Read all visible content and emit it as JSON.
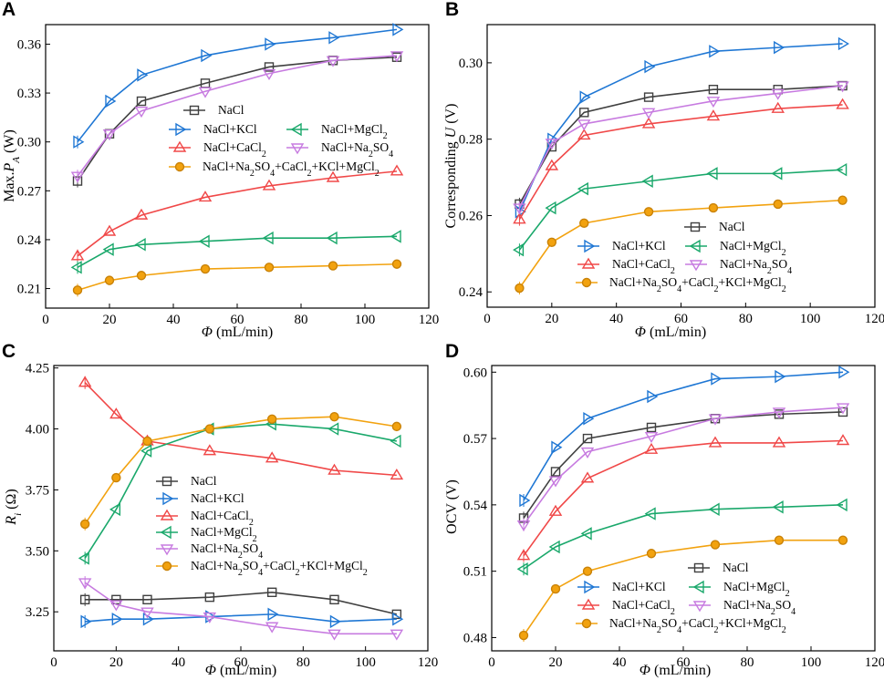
{
  "colors": {
    "NaCl": "#404040",
    "NaCl+KCl": "#1f77d4",
    "NaCl+CaCl2": "#f04848",
    "NaCl+MgCl2": "#1aa86b",
    "NaCl+Na2SO4": "#c77be0",
    "mix": "#f2a20f"
  },
  "chart_data": [
    {
      "type": "line",
      "panel": "A",
      "x": [
        10,
        20,
        30,
        50,
        70,
        90,
        110
      ],
      "xlim": [
        0,
        120
      ],
      "xticks": [
        0,
        20,
        40,
        60,
        80,
        100,
        120
      ],
      "ylim": [
        0.198,
        0.372
      ],
      "yticks": [
        0.21,
        0.24,
        0.27,
        0.3,
        0.33,
        0.36
      ],
      "ytick_labels": [
        "0.21",
        "0.24",
        "0.27",
        "0.30",
        "0.33",
        "0.36"
      ],
      "xlabel": "Φ (mL/min)",
      "ylabel_main": "Max.",
      "ylabel_sym": "P",
      "ylabel_sub": "A",
      "ylabel_unit": " (W)",
      "series": [
        {
          "key": "NaCl",
          "marker": "square",
          "values": [
            0.276,
            0.305,
            0.325,
            0.336,
            0.346,
            0.35,
            0.352
          ]
        },
        {
          "key": "NaCl+KCl",
          "marker": "tri-right",
          "values": [
            0.3,
            0.325,
            0.341,
            0.353,
            0.36,
            0.364,
            0.369
          ]
        },
        {
          "key": "NaCl+CaCl2",
          "marker": "tri-up",
          "values": [
            0.23,
            0.245,
            0.255,
            0.266,
            0.273,
            0.278,
            0.282
          ]
        },
        {
          "key": "NaCl+MgCl2",
          "marker": "tri-left",
          "values": [
            0.223,
            0.234,
            0.237,
            0.239,
            0.241,
            0.241,
            0.242
          ]
        },
        {
          "key": "NaCl+Na2SO4",
          "marker": "tri-down",
          "values": [
            0.279,
            0.305,
            0.319,
            0.331,
            0.342,
            0.35,
            0.353
          ]
        },
        {
          "key": "mix",
          "marker": "circle",
          "values": [
            0.209,
            0.215,
            0.218,
            0.222,
            0.223,
            0.224,
            0.225
          ]
        }
      ],
      "legend": {
        "placement": "middle-right"
      }
    },
    {
      "type": "line",
      "panel": "B",
      "x": [
        10,
        20,
        30,
        50,
        70,
        90,
        110
      ],
      "xlim": [
        0,
        120
      ],
      "xticks": [
        0,
        20,
        40,
        60,
        80,
        100,
        120
      ],
      "ylim": [
        0.236,
        0.31
      ],
      "yticks": [
        0.24,
        0.26,
        0.28,
        0.3
      ],
      "ytick_labels": [
        "0.24",
        "0.26",
        "0.28",
        "0.30"
      ],
      "xlabel": "Φ (mL/min)",
      "ylabel_main": "Corresponding ",
      "ylabel_sym": "U",
      "ylabel_sub": "",
      "ylabel_unit": " (V)",
      "series": [
        {
          "key": "NaCl",
          "marker": "square",
          "values": [
            0.263,
            0.278,
            0.287,
            0.291,
            0.293,
            0.293,
            0.294
          ]
        },
        {
          "key": "NaCl+KCl",
          "marker": "tri-right",
          "values": [
            0.261,
            0.28,
            0.291,
            0.299,
            0.303,
            0.304,
            0.305
          ]
        },
        {
          "key": "NaCl+CaCl2",
          "marker": "tri-up",
          "values": [
            0.259,
            0.273,
            0.281,
            0.284,
            0.286,
            0.288,
            0.289
          ]
        },
        {
          "key": "NaCl+MgCl2",
          "marker": "tri-left",
          "values": [
            0.251,
            0.262,
            0.267,
            0.269,
            0.271,
            0.271,
            0.272
          ]
        },
        {
          "key": "NaCl+Na2SO4",
          "marker": "tri-down",
          "values": [
            0.262,
            0.279,
            0.284,
            0.287,
            0.29,
            0.292,
            0.294
          ]
        },
        {
          "key": "mix",
          "marker": "circle",
          "values": [
            0.241,
            0.253,
            0.258,
            0.261,
            0.262,
            0.263,
            0.264
          ]
        }
      ],
      "legend": {
        "placement": "lower-right"
      }
    },
    {
      "type": "line",
      "panel": "C",
      "x": [
        10,
        20,
        30,
        50,
        70,
        90,
        110
      ],
      "xlim": [
        0,
        120
      ],
      "xticks": [
        0,
        20,
        40,
        60,
        80,
        100,
        120
      ],
      "ylim": [
        3.09,
        4.26
      ],
      "yticks": [
        3.25,
        3.5,
        3.75,
        4.0,
        4.25
      ],
      "ytick_labels": [
        "3.25",
        "3.50",
        "3.75",
        "4.00",
        "4.25"
      ],
      "xlabel": "Φ (mL/min)",
      "ylabel_main": "",
      "ylabel_sym": "R",
      "ylabel_sub": "i",
      "ylabel_unit": " (Ω)",
      "series": [
        {
          "key": "NaCl",
          "marker": "square",
          "values": [
            3.3,
            3.3,
            3.3,
            3.31,
            3.33,
            3.3,
            3.24
          ]
        },
        {
          "key": "NaCl+KCl",
          "marker": "tri-right",
          "values": [
            3.21,
            3.22,
            3.22,
            3.23,
            3.24,
            3.21,
            3.22
          ]
        },
        {
          "key": "NaCl+CaCl2",
          "marker": "tri-up",
          "values": [
            4.19,
            4.06,
            3.95,
            3.91,
            3.88,
            3.83,
            3.81
          ]
        },
        {
          "key": "NaCl+MgCl2",
          "marker": "tri-left",
          "values": [
            3.47,
            3.67,
            3.91,
            4.0,
            4.02,
            4.0,
            3.95
          ]
        },
        {
          "key": "NaCl+Na2SO4",
          "marker": "tri-down",
          "values": [
            3.37,
            3.28,
            3.25,
            3.23,
            3.19,
            3.16,
            3.16
          ]
        },
        {
          "key": "mix",
          "marker": "circle",
          "values": [
            3.61,
            3.8,
            3.95,
            4.0,
            4.04,
            4.05,
            4.01
          ]
        }
      ],
      "legend": {
        "placement": "lower-left"
      }
    },
    {
      "type": "line",
      "panel": "D",
      "x": [
        10,
        20,
        30,
        50,
        70,
        90,
        110
      ],
      "xlim": [
        0,
        120
      ],
      "xticks": [
        0,
        20,
        40,
        60,
        80,
        100,
        120
      ],
      "ylim": [
        0.474,
        0.603
      ],
      "yticks": [
        0.48,
        0.51,
        0.54,
        0.57,
        0.6
      ],
      "ytick_labels": [
        "0.48",
        "0.51",
        "0.54",
        "0.57",
        "0.60"
      ],
      "xlabel": "Φ (mL/min)",
      "ylabel_main": "OCV",
      "ylabel_sym": "",
      "ylabel_sub": "",
      "ylabel_unit": " (V)",
      "series": [
        {
          "key": "NaCl",
          "marker": "square",
          "values": [
            0.534,
            0.555,
            0.57,
            0.575,
            0.579,
            0.581,
            0.582
          ]
        },
        {
          "key": "NaCl+KCl",
          "marker": "tri-right",
          "values": [
            0.542,
            0.566,
            0.579,
            0.589,
            0.597,
            0.598,
            0.6
          ]
        },
        {
          "key": "NaCl+CaCl2",
          "marker": "tri-up",
          "values": [
            0.517,
            0.537,
            0.552,
            0.565,
            0.568,
            0.568,
            0.569
          ]
        },
        {
          "key": "NaCl+MgCl2",
          "marker": "tri-left",
          "values": [
            0.511,
            0.521,
            0.527,
            0.536,
            0.538,
            0.539,
            0.54
          ]
        },
        {
          "key": "NaCl+Na2SO4",
          "marker": "tri-down",
          "values": [
            0.531,
            0.551,
            0.564,
            0.571,
            0.579,
            0.582,
            0.584
          ]
        },
        {
          "key": "mix",
          "marker": "circle",
          "values": [
            0.481,
            0.502,
            0.51,
            0.518,
            0.522,
            0.524,
            0.524
          ]
        }
      ],
      "legend": {
        "placement": "lower-right"
      }
    }
  ]
}
